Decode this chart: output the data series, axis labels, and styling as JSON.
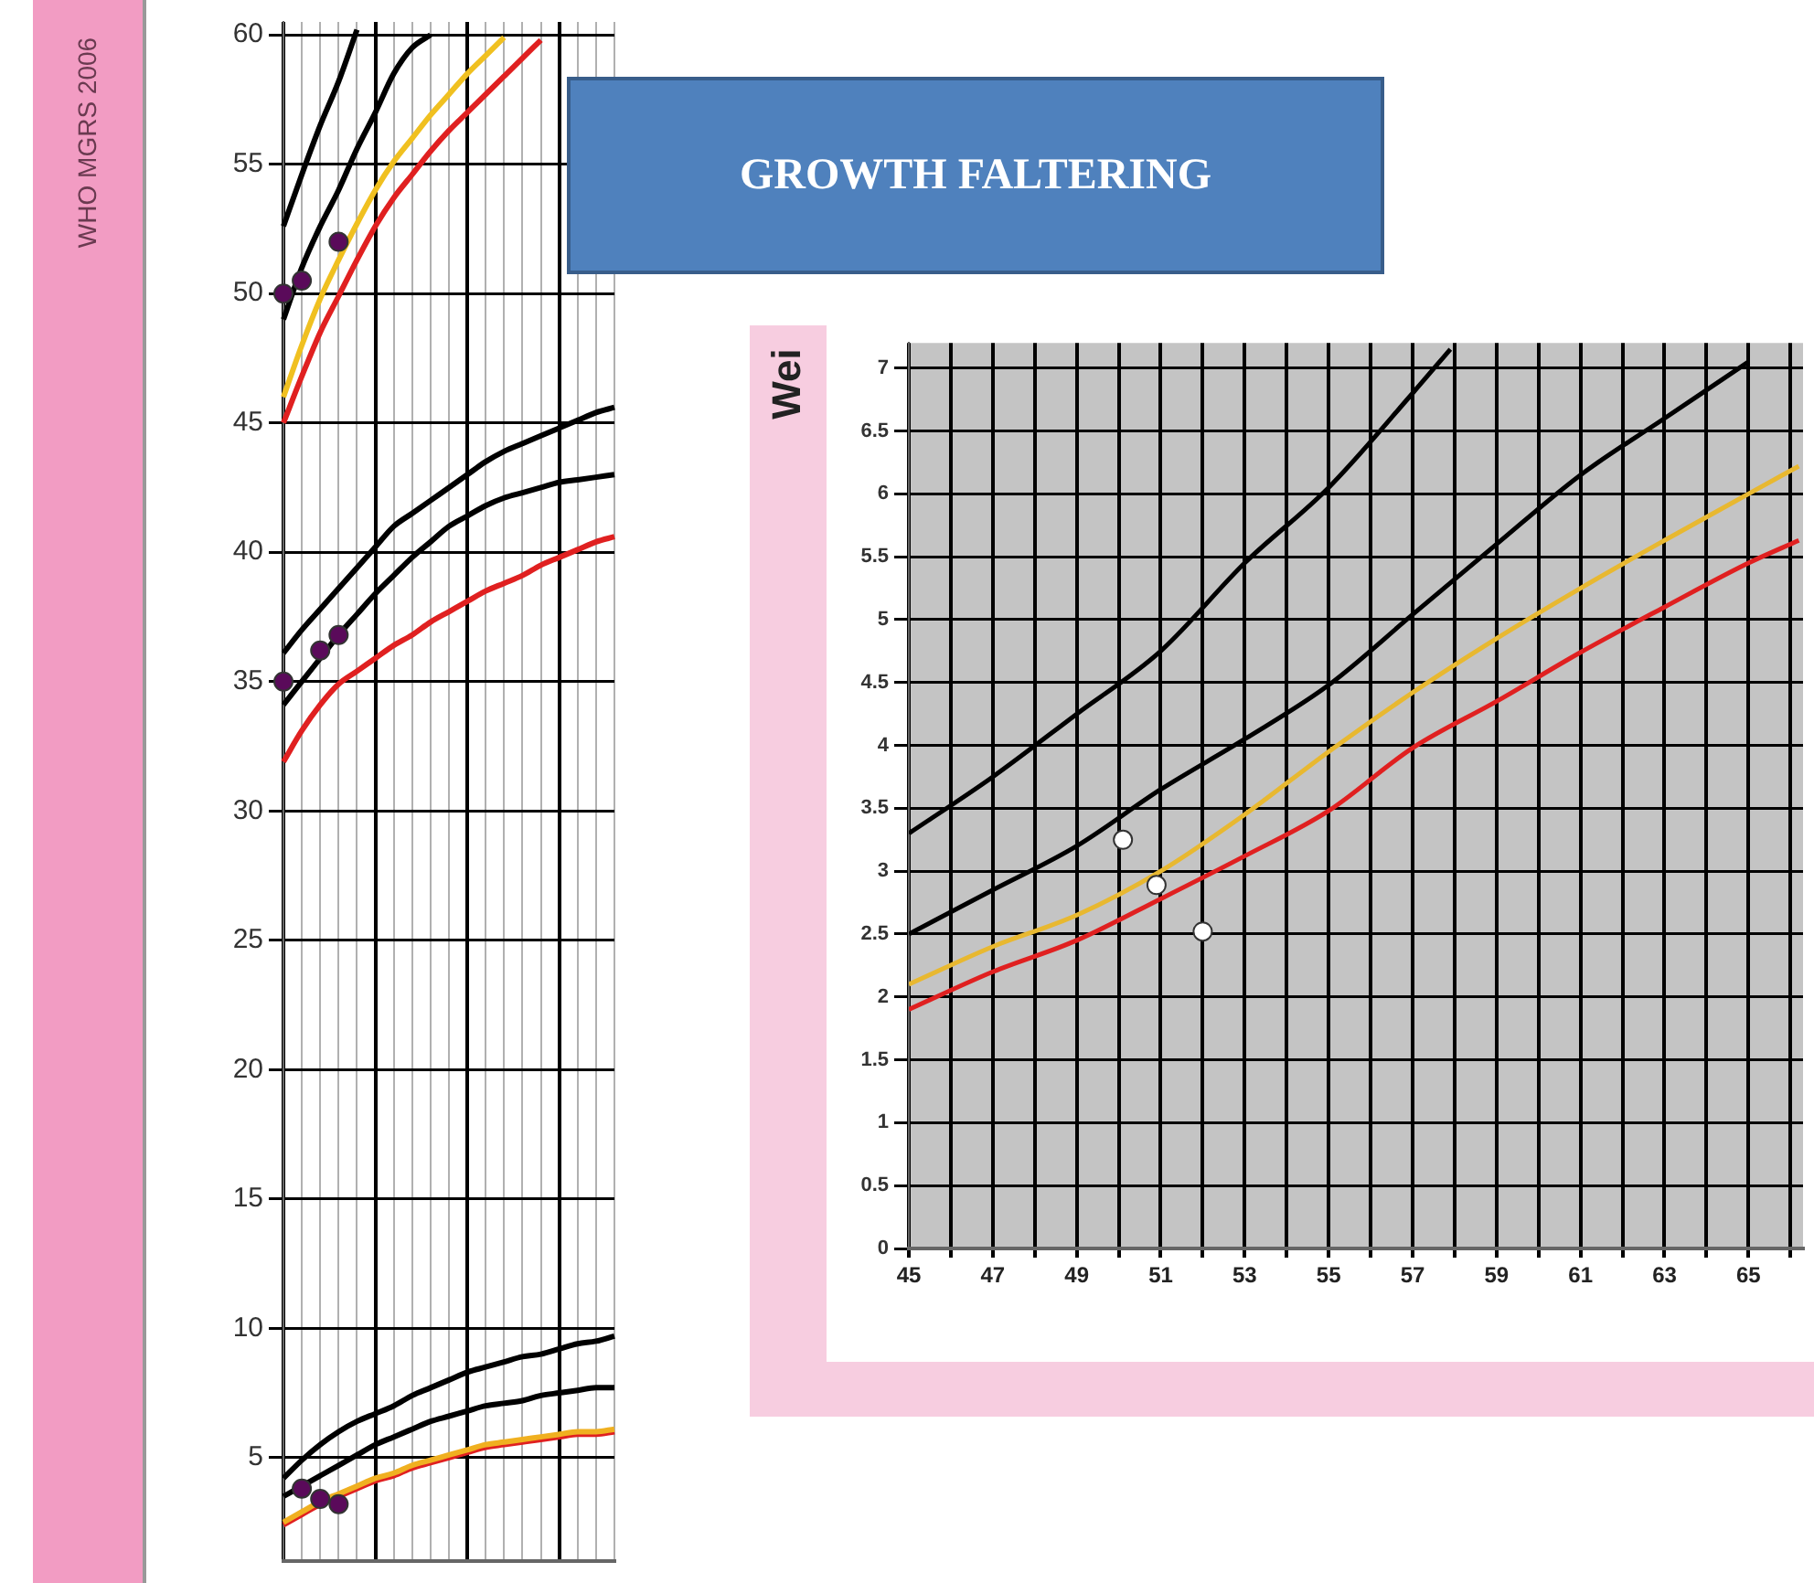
{
  "chart_data": [
    {
      "type": "line",
      "annotations": [
        "WHO MGRS 2006"
      ],
      "categories": [
        null,
        null,
        null,
        null,
        null,
        null,
        null,
        null,
        null,
        null,
        null,
        null,
        null,
        null,
        null,
        null,
        null,
        null,
        null
      ],
      "ylim": [
        1,
        60.5
      ],
      "yticks": [
        5,
        10,
        15,
        20,
        25,
        30,
        35,
        40,
        45,
        50,
        55,
        60
      ],
      "tick_labels": "y",
      "grid": true,
      "legend": false,
      "series": [
        {
          "color": "#000000",
          "values": [
            52.6,
            54.6,
            56.5,
            58.2,
            60.2,
            null,
            null,
            null,
            null,
            null,
            null,
            null,
            null,
            null,
            null,
            null,
            null,
            null,
            null
          ]
        },
        {
          "color": "#000000",
          "values": [
            49.0,
            51.0,
            52.6,
            54.0,
            55.6,
            57.0,
            58.5,
            59.5,
            60.0,
            null,
            null,
            null,
            null,
            null,
            null,
            null,
            null,
            null,
            null
          ]
        },
        {
          "color": "#f0c020",
          "values": [
            46.0,
            48.0,
            49.8,
            51.3,
            52.7,
            54.0,
            55.1,
            56.0,
            56.9,
            57.7,
            58.5,
            59.2,
            59.9,
            null,
            null,
            null,
            null,
            null,
            null
          ]
        },
        {
          "color": "#e02020",
          "values": [
            45.0,
            46.8,
            48.5,
            49.9,
            51.3,
            52.6,
            53.7,
            54.6,
            55.5,
            56.3,
            57.0,
            57.7,
            58.4,
            59.1,
            59.8,
            null,
            null,
            null,
            null
          ]
        },
        {
          "color": "#000000",
          "values": [
            36.1,
            37.0,
            37.8,
            38.6,
            39.4,
            40.2,
            41.0,
            41.5,
            42.0,
            42.5,
            43.0,
            43.5,
            43.9,
            44.2,
            44.5,
            44.8,
            45.1,
            45.4,
            45.6
          ]
        },
        {
          "color": "#000000",
          "values": [
            34.1,
            35.0,
            35.9,
            36.8,
            37.6,
            38.4,
            39.1,
            39.8,
            40.4,
            41.0,
            41.4,
            41.8,
            42.1,
            42.3,
            42.5,
            42.7,
            42.8,
            42.9,
            43.0
          ]
        },
        {
          "color": "#e02020",
          "values": [
            31.9,
            33.1,
            34.1,
            34.9,
            35.4,
            35.9,
            36.4,
            36.8,
            37.3,
            37.7,
            38.1,
            38.5,
            38.8,
            39.1,
            39.5,
            39.8,
            40.1,
            40.4,
            40.6
          ]
        },
        {
          "color": "#000000",
          "values": [
            4.2,
            4.9,
            5.5,
            6.0,
            6.4,
            6.7,
            7.0,
            7.4,
            7.7,
            8.0,
            8.3,
            8.5,
            8.7,
            8.9,
            9.0,
            9.2,
            9.4,
            9.5,
            9.7
          ]
        },
        {
          "color": "#000000",
          "values": [
            3.5,
            3.9,
            4.3,
            4.7,
            5.1,
            5.5,
            5.8,
            6.1,
            6.4,
            6.6,
            6.8,
            7.0,
            7.1,
            7.2,
            7.4,
            7.5,
            7.6,
            7.7,
            7.7
          ]
        },
        {
          "color": "#e02020",
          "values": [
            2.4,
            2.8,
            3.2,
            3.5,
            3.8,
            4.1,
            4.3,
            4.6,
            4.8,
            5.0,
            5.2,
            5.4,
            5.5,
            5.6,
            5.7,
            5.8,
            5.9,
            5.9,
            6.0
          ]
        },
        {
          "color": "#f0b020",
          "values": [
            2.5,
            2.9,
            3.3,
            3.6,
            3.9,
            4.2,
            4.4,
            4.7,
            4.9,
            5.1,
            5.3,
            5.5,
            5.6,
            5.7,
            5.8,
            5.9,
            6.0,
            6.0,
            6.1
          ]
        },
        {
          "type": "scatter",
          "marker": "circle",
          "color": "#5a0a5a",
          "values": [
            50.0,
            50.5,
            null,
            52.0,
            null,
            null,
            null,
            null,
            null,
            null,
            null,
            null,
            null,
            null,
            null,
            null,
            null,
            null,
            null
          ]
        },
        {
          "type": "scatter",
          "marker": "circle",
          "color": "#5a0a5a",
          "values": [
            35.0,
            null,
            36.2,
            36.8,
            null,
            null,
            null,
            null,
            null,
            null,
            null,
            null,
            null,
            null,
            null,
            null,
            null,
            null,
            null
          ]
        },
        {
          "type": "scatter",
          "marker": "circle",
          "color": "#5a0a5a",
          "values": [
            null,
            3.8,
            3.4,
            3.2,
            null,
            null,
            null,
            null,
            null,
            null,
            null,
            null,
            null,
            null,
            null,
            null,
            null,
            null,
            null
          ]
        }
      ]
    },
    {
      "type": "line",
      "ylabel": "Wei",
      "annotations": [
        "GROWTH FALTERING"
      ],
      "xlim": [
        45,
        66.3
      ],
      "xticks": [
        45,
        {
          "value": 46,
          "label": null
        },
        47,
        {
          "value": 48,
          "label": null
        },
        49,
        {
          "value": 50,
          "label": null
        },
        51,
        {
          "value": 52,
          "label": null
        },
        53,
        {
          "value": 54,
          "label": null
        },
        55,
        {
          "value": 56,
          "label": null
        },
        57,
        {
          "value": 58,
          "label": null
        },
        59,
        {
          "value": 60,
          "label": null
        },
        61,
        {
          "value": 62,
          "label": null
        },
        63,
        {
          "value": 64,
          "label": null
        },
        65,
        {
          "value": 66,
          "label": null
        }
      ],
      "ylim": [
        0,
        7.2
      ],
      "yticks": [
        0,
        0.5,
        1,
        1.5,
        2,
        2.5,
        3,
        3.5,
        4,
        4.5,
        5,
        5.5,
        6,
        6.5,
        7
      ],
      "grid": true,
      "legend": false,
      "series": [
        {
          "color": "#000000",
          "x": [
            45,
            47,
            49,
            51,
            53,
            55,
            57,
            57.9
          ],
          "values": [
            3.3,
            3.75,
            4.25,
            4.75,
            5.45,
            6.05,
            6.8,
            7.15
          ]
        },
        {
          "color": "#000000",
          "x": [
            45,
            47,
            49,
            51,
            53,
            55,
            57,
            59,
            61,
            63,
            65
          ],
          "values": [
            2.5,
            2.85,
            3.2,
            3.65,
            4.05,
            4.48,
            5.04,
            5.6,
            6.15,
            6.6,
            7.05
          ]
        },
        {
          "color": "#e8b830",
          "x": [
            45,
            47,
            49,
            51,
            53,
            55,
            57,
            59,
            61,
            63,
            65,
            66.2
          ],
          "values": [
            2.1,
            2.4,
            2.65,
            3.0,
            3.45,
            3.95,
            4.42,
            4.85,
            5.25,
            5.63,
            6.0,
            6.22
          ]
        },
        {
          "color": "#e02020",
          "x": [
            45,
            47,
            49,
            51,
            53,
            55,
            57,
            59,
            61,
            63,
            65,
            66.2
          ],
          "values": [
            1.9,
            2.2,
            2.45,
            2.78,
            3.12,
            3.48,
            3.98,
            4.35,
            4.74,
            5.1,
            5.45,
            5.63
          ]
        },
        {
          "type": "scatter",
          "marker": "circle",
          "color": "#ffffff",
          "x": [
            50.1,
            50.9,
            52.0
          ],
          "values": [
            3.25,
            2.89,
            2.52
          ]
        }
      ]
    }
  ]
}
